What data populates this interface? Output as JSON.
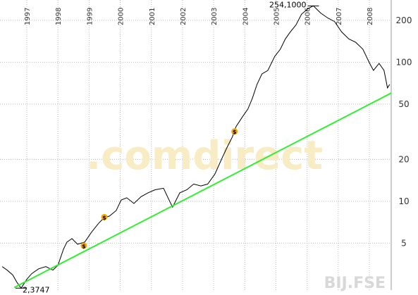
{
  "chart_data": {
    "type": "line",
    "log_y": true,
    "grid": true,
    "xlim": [
      1996.14,
      2008.7
    ],
    "ylim": [
      2.3,
      280
    ],
    "xticks": [
      1997,
      1998,
      1999,
      2000,
      2001,
      2002,
      2003,
      2004,
      2005,
      2006,
      2007,
      2008
    ],
    "yticks": [
      5,
      10,
      20,
      50,
      100,
      200
    ],
    "watermark": ".comdirect",
    "symbol": "BIJ.FSE",
    "series": [
      {
        "style": "line",
        "color": "#000000",
        "x": [
          1996.21,
          1996.37,
          1996.55,
          1996.68,
          1996.82,
          1997.0,
          1997.16,
          1997.38,
          1997.61,
          1997.84,
          1998.0,
          1998.18,
          1998.29,
          1998.45,
          1998.63,
          1998.86,
          1999.09,
          1999.31,
          1999.49,
          1999.65,
          1999.87,
          2000.03,
          2000.21,
          2000.44,
          2000.67,
          2000.89,
          2001.12,
          2001.39,
          2001.57,
          2001.68,
          2001.91,
          2002.14,
          2002.36,
          2002.59,
          2002.81,
          2003.04,
          2003.27,
          2003.43,
          2003.6,
          2003.72,
          2003.94,
          2004.1,
          2004.24,
          2004.39,
          2004.55,
          2004.74,
          2004.96,
          2005.14,
          2005.3,
          2005.46,
          2005.64,
          2005.82,
          2006.02,
          2006.2,
          2006.43,
          2006.66,
          2006.88,
          2007.11,
          2007.34,
          2007.56,
          2007.79,
          2008.01,
          2008.13,
          2008.31,
          2008.47,
          2008.58,
          2008.65
        ],
        "values": [
          3.39,
          3.2,
          2.95,
          2.62,
          2.3747,
          2.75,
          3.02,
          3.27,
          3.39,
          3.2,
          3.47,
          4.53,
          5.09,
          5.39,
          4.91,
          5.09,
          6.05,
          6.97,
          7.64,
          7.82,
          8.57,
          10.2,
          10.6,
          9.64,
          10.8,
          11.5,
          12.1,
          12.4,
          10.2,
          9.08,
          11.5,
          12.1,
          13.3,
          12.9,
          13.3,
          15.7,
          20.5,
          24.4,
          29.0,
          34.5,
          41.0,
          46.1,
          54.8,
          69.2,
          82.4,
          87.3,
          110,
          124,
          147,
          165,
          185,
          221,
          242,
          254.1,
          226,
          208,
          196,
          165,
          147,
          139,
          124,
          98,
          87.3,
          98,
          87.3,
          65.3,
          69.2
        ]
      },
      {
        "style": "line",
        "color": "#33ee33",
        "x": [
          1996.6,
          2008.7
        ],
        "values": [
          2.4,
          60
        ]
      },
      {
        "style": "marker",
        "color": "#f5a800",
        "marker_label": "$",
        "x": [
          1998.83,
          1999.49,
          2003.67
        ],
        "values": [
          4.8,
          7.7,
          31.8
        ]
      }
    ],
    "annotations": [
      {
        "text": "254,1000",
        "x": 2006.2,
        "y": 254.1
      },
      {
        "text": "2,3747",
        "x": 1996.82,
        "y": 2.3747
      }
    ]
  }
}
